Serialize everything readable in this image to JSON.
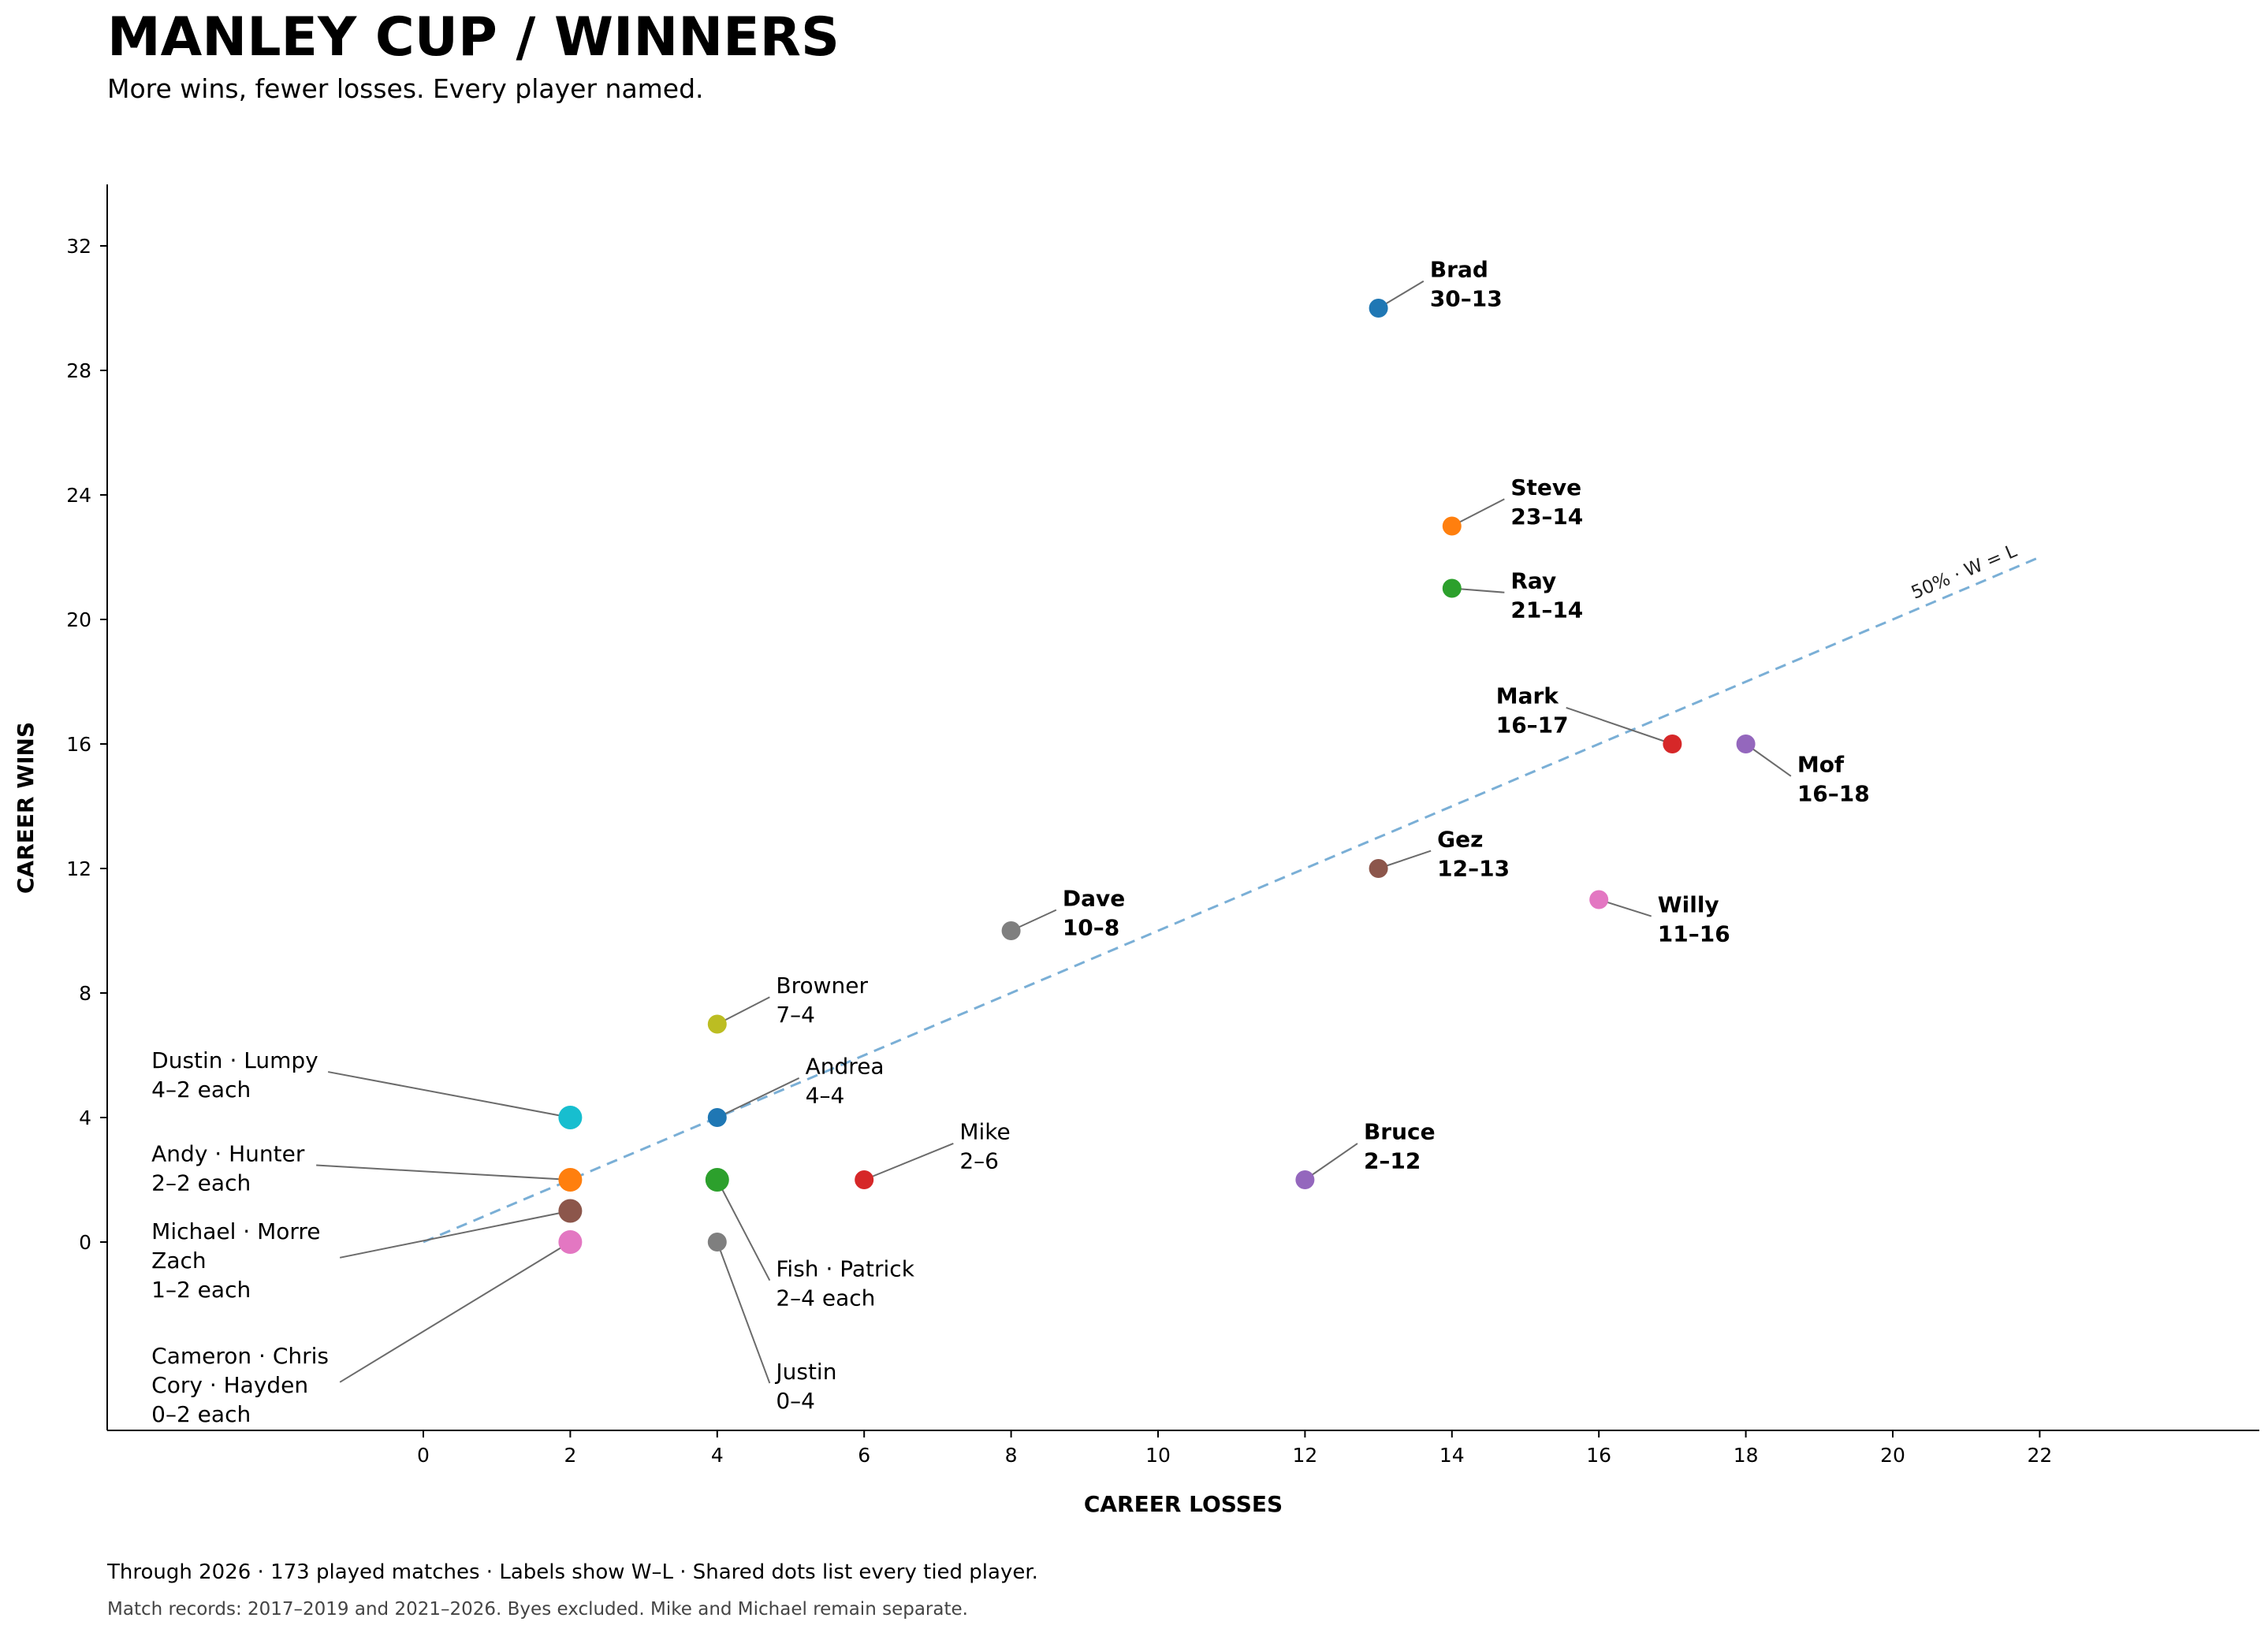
{
  "header": {
    "title": "MANLEY CUP  /  WINNERS",
    "subtitle": "More wins, fewer losses. Every player named."
  },
  "footer": {
    "summary": "Through 2026 · 173 played matches · Labels show W–L · Shared dots list every tied player.",
    "note": "Match records: 2017–2019 and 2021–2026. Byes excluded. Mike and Michael remain separate."
  },
  "chart_data": {
    "type": "scatter",
    "xlabel": "CAREER LOSSES",
    "ylabel": "CAREER WINS",
    "xlim": [
      -4.3,
      25
    ],
    "ylim": [
      -6,
      34
    ],
    "xticks": [
      0,
      2,
      4,
      6,
      8,
      10,
      12,
      14,
      16,
      18,
      20,
      22
    ],
    "yticks": [
      0,
      4,
      8,
      12,
      16,
      20,
      24,
      28,
      32
    ],
    "grid": false,
    "reference_line": {
      "label": "50% · W = L",
      "from": [
        0,
        0
      ],
      "to": [
        22,
        22
      ],
      "color": "#7aafd6"
    },
    "points": [
      {
        "x": 13,
        "y": 30,
        "color": "#1f77b4",
        "lines": [
          "Brad",
          "30–13"
        ],
        "bold": true,
        "label_at": [
          13.7,
          31
        ],
        "anchor": "start"
      },
      {
        "x": 14,
        "y": 23,
        "color": "#ff7f0e",
        "lines": [
          "Steve",
          "23–14"
        ],
        "bold": true,
        "label_at": [
          14.8,
          24
        ],
        "anchor": "start"
      },
      {
        "x": 14,
        "y": 21,
        "color": "#2ca02c",
        "lines": [
          "Ray",
          "21–14"
        ],
        "bold": true,
        "label_at": [
          14.8,
          21
        ],
        "anchor": "start"
      },
      {
        "x": 17,
        "y": 16,
        "color": "#d62728",
        "lines": [
          "Mark",
          "16–17"
        ],
        "bold": true,
        "label_at": [
          14.6,
          17.3
        ],
        "anchor": "start"
      },
      {
        "x": 18,
        "y": 16,
        "color": "#9467bd",
        "lines": [
          "Mof",
          "16–18"
        ],
        "bold": true,
        "label_at": [
          18.7,
          15.1
        ],
        "anchor": "start"
      },
      {
        "x": 13,
        "y": 12,
        "color": "#8c564b",
        "lines": [
          "Gez",
          "12–13"
        ],
        "bold": true,
        "label_at": [
          13.8,
          12.7
        ],
        "anchor": "start"
      },
      {
        "x": 16,
        "y": 11,
        "color": "#e377c2",
        "lines": [
          "Willy",
          "11–16"
        ],
        "bold": true,
        "label_at": [
          16.8,
          10.6
        ],
        "anchor": "start"
      },
      {
        "x": 8,
        "y": 10,
        "color": "#7f7f7f",
        "lines": [
          "Dave",
          "10–8"
        ],
        "bold": true,
        "label_at": [
          8.7,
          10.8
        ],
        "anchor": "start"
      },
      {
        "x": 4,
        "y": 7,
        "color": "#bcbd22",
        "lines": [
          "Browner",
          "7–4"
        ],
        "bold": false,
        "label_at": [
          4.8,
          8
        ],
        "anchor": "start"
      },
      {
        "x": 4,
        "y": 4,
        "color": "#1f77b4",
        "lines": [
          "Andrea",
          "4–4"
        ],
        "bold": false,
        "label_at": [
          5.2,
          5.4
        ],
        "anchor": "start"
      },
      {
        "x": 6,
        "y": 2,
        "color": "#d62728",
        "lines": [
          "Mike",
          "2–6"
        ],
        "bold": false,
        "label_at": [
          7.3,
          3.3
        ],
        "anchor": "start"
      },
      {
        "x": 12,
        "y": 2,
        "color": "#9467bd",
        "lines": [
          "Bruce",
          "2–12"
        ],
        "bold": true,
        "label_at": [
          12.8,
          3.3
        ],
        "anchor": "start"
      },
      {
        "x": 2,
        "y": 4,
        "color": "#17becf",
        "lines": [
          "Dustin · Lumpy",
          "4–2 each"
        ],
        "bold": false,
        "label_at": [
          -3.7,
          5.6
        ],
        "anchor": "start",
        "shared": true
      },
      {
        "x": 2,
        "y": 2,
        "color": "#ff7f0e",
        "lines": [
          "Andy · Hunter",
          "2–2 each"
        ],
        "bold": false,
        "label_at": [
          -3.7,
          2.6
        ],
        "anchor": "start",
        "shared": true
      },
      {
        "x": 2,
        "y": 1,
        "color": "#8c564b",
        "lines": [
          "Michael · Morre",
          "Zach",
          "1–2 each"
        ],
        "bold": false,
        "label_at": [
          -3.7,
          0.1
        ],
        "anchor": "start",
        "shared": true
      },
      {
        "x": 2,
        "y": 0,
        "color": "#e377c2",
        "lines": [
          "Cameron · Chris",
          "Cory · Hayden",
          "0–2 each"
        ],
        "bold": false,
        "label_at": [
          -3.7,
          -3.9
        ],
        "anchor": "start",
        "shared": true
      },
      {
        "x": 4,
        "y": 2,
        "color": "#2ca02c",
        "lines": [
          "Fish · Patrick",
          "2–4 each"
        ],
        "bold": false,
        "label_at": [
          4.8,
          -1.1
        ],
        "anchor": "start",
        "shared": true
      },
      {
        "x": 4,
        "y": 0,
        "color": "#7f7f7f",
        "lines": [
          "Justin",
          "0–4"
        ],
        "bold": false,
        "label_at": [
          4.8,
          -4.4
        ],
        "anchor": "start"
      }
    ]
  }
}
